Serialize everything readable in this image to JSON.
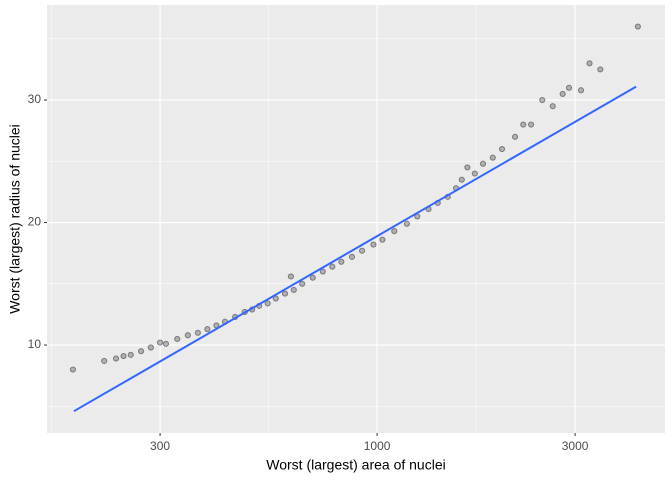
{
  "chart_data": {
    "type": "scatter",
    "x_label": "Worst (largest) area of nuclei",
    "y_label": "Worst (largest) radius of nuclei",
    "x_scale": "log",
    "xlim": [
      160.2,
      4940
    ],
    "xticks": [
      300,
      1000,
      3000
    ],
    "ylim": [
      2.82,
      37.76
    ],
    "yticks": [
      10,
      20,
      30
    ],
    "grid": true,
    "points": {
      "color": "#000000",
      "opacity": 0.25,
      "x": [
        185,
        220,
        235,
        245,
        255,
        270,
        285,
        300,
        310,
        330,
        350,
        370,
        390,
        410,
        430,
        455,
        480,
        500,
        520,
        545,
        570,
        600,
        630,
        660,
        620,
        700,
        740,
        780,
        820,
        870,
        920,
        980,
        1030,
        1100,
        1180,
        1250,
        1330,
        1400,
        1480,
        1550,
        1600,
        1650,
        1720,
        1800,
        1900,
        2000,
        2150,
        2250,
        2350,
        2500,
        2650,
        2800,
        2900,
        3100,
        3250,
        3450,
        4250
      ],
      "y": [
        8.0,
        8.7,
        8.9,
        9.1,
        9.2,
        9.5,
        9.8,
        10.2,
        10.1,
        10.5,
        10.8,
        11.0,
        11.3,
        11.6,
        11.9,
        12.3,
        12.7,
        12.9,
        13.2,
        13.4,
        13.8,
        14.2,
        14.5,
        15.0,
        15.6,
        15.5,
        16.0,
        16.4,
        16.8,
        17.2,
        17.7,
        18.2,
        18.6,
        19.3,
        19.9,
        20.5,
        21.1,
        21.6,
        22.1,
        22.8,
        23.5,
        24.5,
        24.0,
        24.8,
        25.3,
        26.0,
        27.0,
        28.0,
        28.0,
        30.0,
        29.5,
        30.5,
        31.0,
        30.8,
        33.0,
        32.5,
        36.0
      ]
    },
    "fit_line": {
      "color": "#3366ff",
      "x": [
        186,
        4210
      ],
      "y": [
        4.6,
        31.1
      ]
    }
  }
}
